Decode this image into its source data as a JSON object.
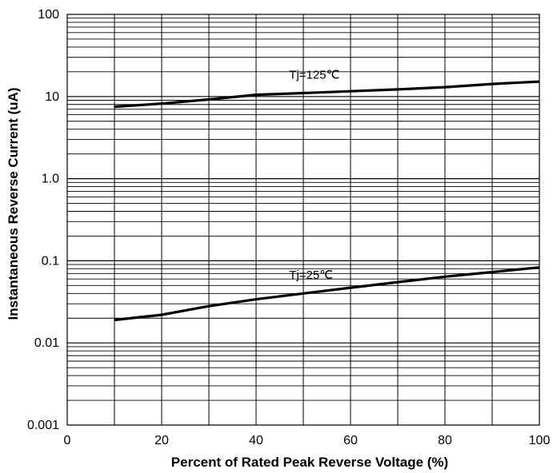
{
  "chart_data": {
    "type": "line",
    "title": "",
    "xlabel": "Percent of Rated Peak Reverse Voltage (%)",
    "ylabel": "Instantaneous Reverse Current (uA)",
    "xlim": [
      0,
      100
    ],
    "ylim": [
      0.001,
      100
    ],
    "yscale": "log",
    "grid": true,
    "x_ticks": [
      {
        "value": 0,
        "label": "0"
      },
      {
        "value": 20,
        "label": "20"
      },
      {
        "value": 40,
        "label": "40"
      },
      {
        "value": 60,
        "label": "60"
      },
      {
        "value": 80,
        "label": "80"
      },
      {
        "value": 100,
        "label": "100"
      }
    ],
    "y_ticks": [
      {
        "value": 0.001,
        "label": "0.001"
      },
      {
        "value": 0.01,
        "label": "0.01"
      },
      {
        "value": 0.1,
        "label": "0.1"
      },
      {
        "value": 1,
        "label": "1.0"
      },
      {
        "value": 10,
        "label": "10"
      },
      {
        "value": 100,
        "label": "100"
      }
    ],
    "series": [
      {
        "name": "Tj=125℃",
        "x": [
          10,
          20,
          30,
          40,
          50,
          60,
          70,
          80,
          90,
          100
        ],
        "y": [
          7.5,
          8.2,
          9.2,
          10.5,
          11.0,
          11.6,
          12.2,
          13.0,
          14.2,
          15.2
        ]
      },
      {
        "name": "Tj=25℃",
        "x": [
          10,
          20,
          30,
          40,
          50,
          60,
          70,
          80,
          90,
          100
        ],
        "y": [
          0.019,
          0.022,
          0.028,
          0.034,
          0.04,
          0.047,
          0.055,
          0.064,
          0.073,
          0.083
        ]
      }
    ]
  }
}
